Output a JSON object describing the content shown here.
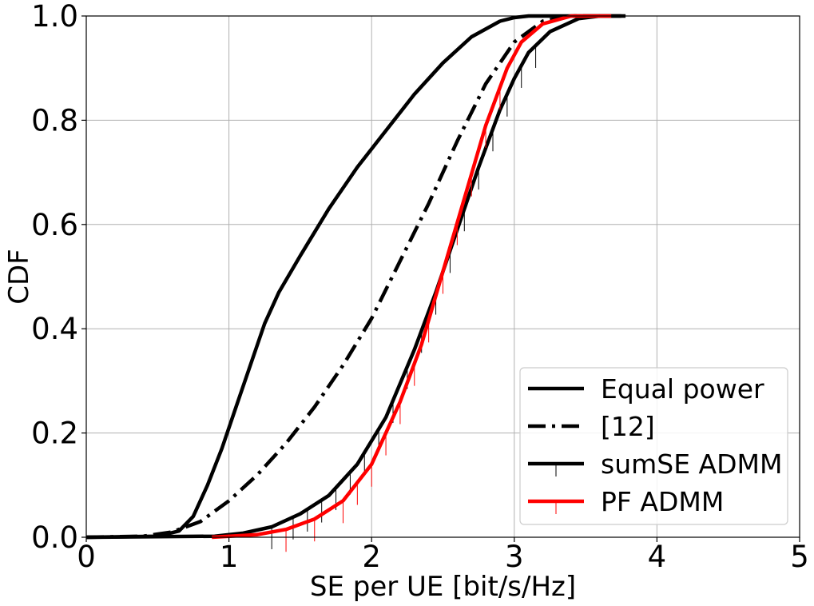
{
  "chart_data": {
    "type": "line",
    "title": "",
    "xlabel": "SE per UE [bit/s/Hz]",
    "ylabel": "CDF",
    "xlim": [
      0,
      5
    ],
    "ylim": [
      0,
      1
    ],
    "xticks": [
      0,
      1,
      2,
      3,
      4,
      5
    ],
    "xtick_labels": [
      "0",
      "1",
      "2",
      "3",
      "4",
      "5"
    ],
    "yticks": [
      0,
      0.2,
      0.4,
      0.6,
      0.8,
      1.0
    ],
    "ytick_labels": [
      "0.0",
      "0.2",
      "0.4",
      "0.6",
      "0.8",
      "1.0"
    ],
    "grid": true,
    "legend_position": "lower-right",
    "series": [
      {
        "name": "Equal power",
        "color": "#000000",
        "style": "solid",
        "marker": "none",
        "x": [
          0,
          0.5,
          0.65,
          0.75,
          0.85,
          0.95,
          1.05,
          1.15,
          1.25,
          1.35,
          1.5,
          1.7,
          1.9,
          2.1,
          2.3,
          2.5,
          2.7,
          2.9,
          3.0,
          3.1,
          3.3,
          3.5,
          3.75
        ],
        "y": [
          0,
          0.002,
          0.012,
          0.04,
          0.1,
          0.17,
          0.25,
          0.33,
          0.41,
          0.47,
          0.54,
          0.63,
          0.71,
          0.78,
          0.85,
          0.91,
          0.96,
          0.99,
          0.997,
          1.0,
          1.0,
          1.0,
          1.0
        ]
      },
      {
        "name": "[12]",
        "color": "#000000",
        "style": "dashdot",
        "marker": "none",
        "x": [
          0,
          0.4,
          0.6,
          0.8,
          1.0,
          1.2,
          1.4,
          1.6,
          1.8,
          2.0,
          2.2,
          2.4,
          2.6,
          2.8,
          3.0,
          3.2,
          3.4,
          3.6
        ],
        "y": [
          0,
          0.002,
          0.01,
          0.03,
          0.07,
          0.12,
          0.18,
          0.25,
          0.33,
          0.42,
          0.53,
          0.64,
          0.76,
          0.87,
          0.95,
          0.99,
          1.0,
          1.0
        ]
      },
      {
        "name": "sumSE ADMM",
        "color": "#000000",
        "style": "solid",
        "marker": "tick",
        "x": [
          0,
          0.9,
          1.1,
          1.3,
          1.5,
          1.7,
          1.9,
          2.1,
          2.3,
          2.45,
          2.6,
          2.75,
          2.9,
          3.0,
          3.1,
          3.25,
          3.45,
          3.6,
          3.78
        ],
        "y": [
          0,
          0.002,
          0.008,
          0.02,
          0.045,
          0.08,
          0.14,
          0.23,
          0.36,
          0.47,
          0.59,
          0.71,
          0.82,
          0.88,
          0.93,
          0.97,
          0.995,
          1.0,
          1.0
        ],
        "marker_x": [
          1.3,
          1.45,
          1.55,
          1.65,
          1.75,
          1.85,
          1.95,
          2.05,
          2.15,
          2.25,
          2.35,
          2.45,
          2.55,
          2.65,
          2.75,
          2.85,
          2.95,
          3.05,
          3.15
        ]
      },
      {
        "name": "PF ADMM",
        "color": "#ff0000",
        "style": "solid",
        "marker": "tick",
        "x": [
          0.88,
          1.2,
          1.4,
          1.6,
          1.8,
          2.0,
          2.2,
          2.35,
          2.5,
          2.65,
          2.8,
          2.95,
          3.05,
          3.2,
          3.4,
          3.68
        ],
        "y": [
          0,
          0.005,
          0.015,
          0.035,
          0.07,
          0.14,
          0.26,
          0.37,
          0.51,
          0.65,
          0.79,
          0.9,
          0.95,
          0.985,
          1.0,
          1.0
        ],
        "marker_x": [
          1.4,
          1.6,
          1.8,
          1.9,
          2.0,
          2.1,
          2.2,
          2.3,
          2.4,
          2.5,
          2.6,
          2.7,
          2.8,
          2.9
        ]
      }
    ]
  }
}
